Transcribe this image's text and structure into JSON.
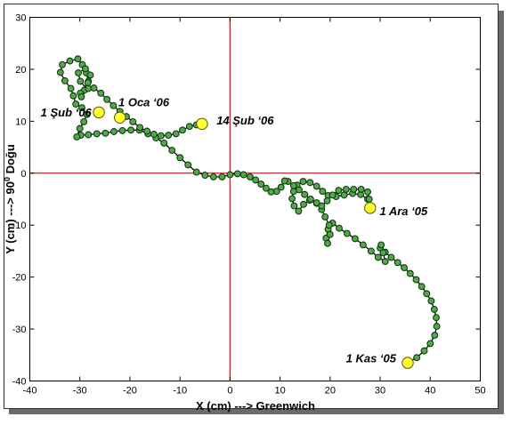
{
  "chart_data": {
    "type": "line",
    "title": "",
    "xlabel": "X (cm) ---> Greenwich",
    "ylabel_main": "Y (cm) ---> 90",
    "ylabel_sup": "0",
    "ylabel_end": " Doğu",
    "xlim": [
      -40,
      50
    ],
    "ylim": [
      -40,
      30
    ],
    "x_ticks": [
      "-40",
      "-30",
      "-20",
      "-10",
      "0",
      "10",
      "20",
      "30",
      "40",
      "50"
    ],
    "y_ticks": [
      "30",
      "20",
      "10",
      "0",
      "-10",
      "-20",
      "-30",
      "-40"
    ],
    "grid": false,
    "colors": {
      "line": "#000000",
      "marker_fill": "#55a84a",
      "marker_edge": "#0e3a12",
      "highlight_fill": "#ffff33",
      "highlight_edge": "#555500",
      "reference_lines": "#c0262d"
    },
    "reference_lines": {
      "x": 0,
      "y": 0
    },
    "series": [
      {
        "points": [
          [
            35.5,
            -36.5
          ],
          [
            37.3,
            -35.5
          ],
          [
            38.8,
            -34.2
          ],
          [
            40.0,
            -32.8
          ],
          [
            40.9,
            -31.2
          ],
          [
            41.3,
            -29.5
          ],
          [
            41.2,
            -27.8
          ],
          [
            40.8,
            -26.2
          ],
          [
            40.2,
            -24.6
          ],
          [
            39.3,
            -23.2
          ],
          [
            38.3,
            -21.8
          ],
          [
            37.2,
            -20.5
          ],
          [
            36.0,
            -19.3
          ],
          [
            34.8,
            -18.2
          ],
          [
            33.5,
            -17.2
          ],
          [
            32.2,
            -16.2
          ],
          [
            31.0,
            -15.2
          ],
          [
            30.0,
            -14.4
          ],
          [
            30.2,
            -13.8
          ],
          [
            30.6,
            -15.3
          ],
          [
            31.0,
            -17.0
          ],
          [
            29.6,
            -16.2
          ],
          [
            28.2,
            -15.0
          ],
          [
            26.6,
            -13.8
          ],
          [
            25.0,
            -12.6
          ],
          [
            23.4,
            -11.6
          ],
          [
            21.8,
            -10.6
          ],
          [
            20.5,
            -9.6
          ],
          [
            19.6,
            -10.8
          ],
          [
            19.2,
            -12.5
          ],
          [
            19.5,
            -13.5
          ],
          [
            20.0,
            -11.8
          ],
          [
            19.8,
            -10.0
          ],
          [
            19.0,
            -8.4
          ],
          [
            18.3,
            -7.0
          ],
          [
            17.3,
            -5.8
          ],
          [
            15.9,
            -5.2
          ],
          [
            14.7,
            -6.0
          ],
          [
            13.7,
            -7.3
          ],
          [
            12.8,
            -6.3
          ],
          [
            12.4,
            -4.9
          ],
          [
            12.7,
            -3.5
          ],
          [
            13.4,
            -2.3
          ],
          [
            14.6,
            -1.6
          ],
          [
            16.0,
            -1.8
          ],
          [
            17.3,
            -2.5
          ],
          [
            18.5,
            -3.5
          ],
          [
            19.6,
            -4.3
          ],
          [
            21.2,
            -4.5
          ],
          [
            22.8,
            -4.2
          ],
          [
            24.5,
            -3.9
          ],
          [
            26.1,
            -4.1
          ],
          [
            27.5,
            -5.0
          ],
          [
            28.1,
            -6.3
          ],
          [
            28.0,
            -6.7
          ],
          [
            27.8,
            -5.0
          ],
          [
            27.5,
            -3.6
          ],
          [
            26.2,
            -3.1
          ],
          [
            24.7,
            -3.1
          ],
          [
            23.2,
            -3.1
          ],
          [
            21.7,
            -3.3
          ],
          [
            20.5,
            -4.2
          ],
          [
            19.4,
            -5.3
          ],
          [
            18.3,
            -6.3
          ],
          [
            17.3,
            -5.7
          ],
          [
            16.1,
            -5.0
          ],
          [
            14.9,
            -4.1
          ],
          [
            13.8,
            -3.2
          ],
          [
            12.7,
            -2.4
          ],
          [
            11.6,
            -1.6
          ],
          [
            10.9,
            -1.5
          ],
          [
            10.2,
            -2.7
          ],
          [
            9.3,
            -3.5
          ],
          [
            8.2,
            -3.6
          ],
          [
            7.2,
            -2.9
          ],
          [
            6.2,
            -2.1
          ],
          [
            5.1,
            -1.3
          ],
          [
            4.0,
            -0.7
          ],
          [
            2.7,
            -0.3
          ],
          [
            1.5,
            -0.1
          ],
          [
            0.0,
            -0.3
          ],
          [
            -1.6,
            -0.7
          ],
          [
            -3.3,
            -0.7
          ],
          [
            -5.0,
            -0.4
          ],
          [
            -6.7,
            0.2
          ],
          [
            -8.4,
            1.6
          ],
          [
            -10.0,
            3.0
          ],
          [
            -11.6,
            4.4
          ],
          [
            -13.2,
            5.8
          ],
          [
            -14.8,
            6.8
          ],
          [
            -16.4,
            7.6
          ],
          [
            -18.1,
            8.3
          ],
          [
            -19.8,
            8.3
          ],
          [
            -21.5,
            8.2
          ],
          [
            -23.2,
            8.0
          ],
          [
            -24.9,
            7.7
          ],
          [
            -26.6,
            7.6
          ],
          [
            -28.3,
            7.4
          ],
          [
            -29.8,
            7.3
          ],
          [
            -30.6,
            7.0
          ],
          [
            -30.0,
            8.6
          ],
          [
            -29.2,
            9.9
          ],
          [
            -28.6,
            11.3
          ],
          [
            -29.6,
            12.6
          ],
          [
            -30.8,
            13.3
          ],
          [
            -31.3,
            14.9
          ],
          [
            -31.8,
            16.3
          ],
          [
            -33.0,
            17.8
          ],
          [
            -33.9,
            19.4
          ],
          [
            -33.5,
            20.9
          ],
          [
            -32.0,
            21.6
          ],
          [
            -30.4,
            22.0
          ],
          [
            -29.5,
            20.9
          ],
          [
            -28.7,
            19.3
          ],
          [
            -28.3,
            17.7
          ],
          [
            -28.7,
            16.3
          ],
          [
            -29.9,
            17.7
          ],
          [
            -30.3,
            19.3
          ],
          [
            -28.9,
            20.1
          ],
          [
            -27.9,
            18.9
          ],
          [
            -28.4,
            17.4
          ],
          [
            -29.1,
            16.0
          ],
          [
            -29.9,
            15.4
          ],
          [
            -29.7,
            14.7
          ],
          [
            -28.3,
            16.3
          ],
          [
            -27.2,
            16.4
          ],
          [
            -25.8,
            15.4
          ],
          [
            -24.6,
            14.2
          ],
          [
            -23.3,
            13.0
          ],
          [
            -22.0,
            11.9
          ],
          [
            -20.7,
            10.9
          ],
          [
            -19.4,
            9.9
          ],
          [
            -18.0,
            8.8
          ],
          [
            -16.6,
            8.1
          ],
          [
            -15.2,
            7.5
          ],
          [
            -13.8,
            7.2
          ],
          [
            -12.3,
            7.3
          ],
          [
            -10.8,
            7.6
          ],
          [
            -9.5,
            8.3
          ],
          [
            -8.1,
            9.0
          ],
          [
            -6.7,
            9.3
          ],
          [
            -5.6,
            9.5
          ]
        ]
      }
    ],
    "highlights": [
      {
        "x": 35.5,
        "y": -36.5,
        "label": "1 Kas ‘05",
        "anchor": "end",
        "lx": 33.2,
        "ly": -36.4
      },
      {
        "x": 28.0,
        "y": -6.7,
        "label": "1 Ara ‘05",
        "anchor": "start",
        "lx": 29.9,
        "ly": -8.1
      },
      {
        "x": -22.0,
        "y": 10.7,
        "label": "1 Oca ‘06",
        "anchor": "start",
        "lx": -22.3,
        "ly": 12.9
      },
      {
        "x": -26.2,
        "y": 11.7,
        "label": "1 Şub ‘06",
        "anchor": "end",
        "lx": -27.7,
        "ly": 10.9
      },
      {
        "x": -5.6,
        "y": 9.5,
        "label": "14 Şub ‘06",
        "anchor": "start",
        "lx": -2.7,
        "ly": 9.4
      }
    ]
  }
}
